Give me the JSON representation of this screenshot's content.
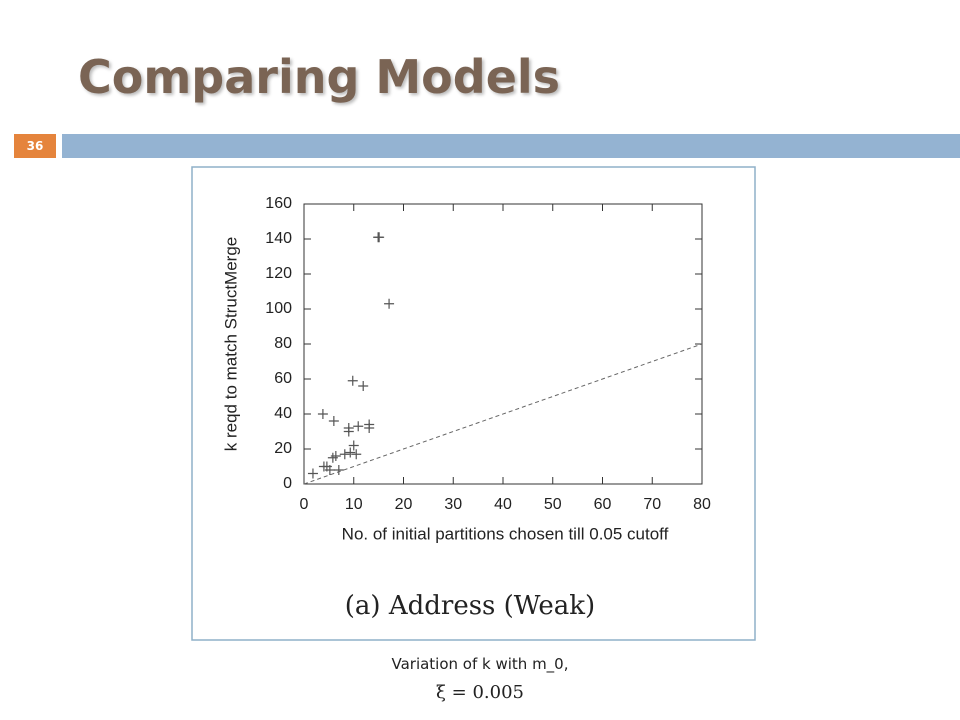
{
  "slide": {
    "title": "Comparing Models",
    "number": "36",
    "caption_line1": "Variation of k with m_0,",
    "caption_line2": "ξ = 0.005"
  },
  "chart_data": {
    "type": "scatter",
    "xlabel": "No. of initial partitions chosen till 0.05 cutoff",
    "ylabel": "k reqd to match StructMerge",
    "caption": "(a) Address (Weak)",
    "xlim": [
      0,
      80
    ],
    "ylim": [
      0,
      160
    ],
    "xticks": [
      0,
      10,
      20,
      30,
      40,
      50,
      60,
      70,
      80
    ],
    "yticks": [
      0,
      20,
      40,
      60,
      80,
      100,
      120,
      140,
      160
    ],
    "color": "#555555",
    "marker": "plus",
    "x": [
      14.9,
      15.1,
      17.1,
      9.8,
      11.9,
      3.8,
      6,
      9,
      9,
      10.9,
      13.1,
      13.1,
      10,
      8.2,
      9.3,
      10.5,
      5.8,
      6.4,
      4,
      4.6,
      5.2,
      7,
      1.8
    ],
    "y": [
      141,
      141,
      103,
      59,
      56,
      40,
      36,
      32,
      30,
      33,
      34,
      32,
      22,
      17,
      18,
      17,
      15,
      16,
      10,
      10,
      8,
      8,
      6
    ],
    "reference_line": {
      "x": [
        0,
        80
      ],
      "y": [
        0,
        80
      ],
      "style": "dashed",
      "color": "#666666"
    }
  }
}
